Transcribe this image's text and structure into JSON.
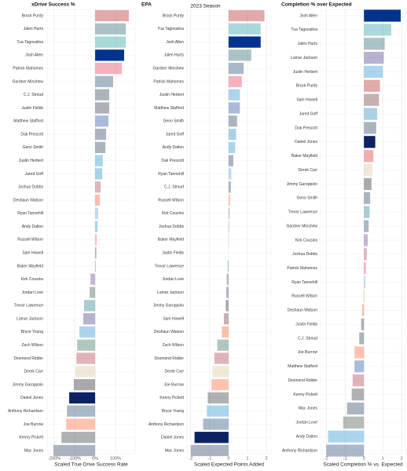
{
  "chart_data": [
    {
      "type": "bar",
      "orientation": "horizontal",
      "title": "xDrive Success %",
      "xlabel": "Scaled True Drive Success Rate",
      "categories": [
        "Brock Purdy",
        "Jalen Hurts",
        "Tua Tagovailoa",
        "Josh Allen",
        "Patrick Mahomes",
        "Gardner Minshew",
        "C.J. Stroud",
        "Justin Fields",
        "Matthew Stafford",
        "Dak Prescott",
        "Geno Smith",
        "Justin Herbert",
        "Jared Goff",
        "Joshua Dobbs",
        "Deshaun Watson",
        "Ryan Tannehill",
        "Andy Dalton",
        "Russell Wilson",
        "Sam Howell",
        "Baker Mayfield",
        "Kirk Cousins",
        "Jordan Love",
        "Trevor Lawrence",
        "Lamar Jackson",
        "Bryce Young",
        "Zach Wilson",
        "Desmond Ridder",
        "Derek Carr",
        "Jimmy Garoppolo",
        "Daniel Jones",
        "Anthony Richardson",
        "Joe Burrow",
        "Kenny Pickett",
        "Mac Jones"
      ],
      "values": [
        165,
        150,
        150,
        142,
        131,
        88,
        69,
        69,
        65,
        54,
        50,
        38,
        35,
        27,
        23,
        15,
        12,
        8,
        6,
        3,
        -23,
        -27,
        -54,
        -58,
        -77,
        -88,
        -92,
        -96,
        -104,
        -127,
        -138,
        -142,
        -165,
        -204
      ],
      "colors": [
        "#aa000055",
        "#004c5455",
        "#008e9755",
        "#00338d",
        "#e3183755",
        "#002c5f55",
        "#03202f55",
        "#0b162a55",
        "#00359455",
        "#041e4255",
        "#00224455",
        "#0080c655",
        "#0076b655",
        "#97233f55",
        "#ff3c0055",
        "#4b92db55",
        "#0085ca55",
        "#fb4f1455",
        "#5a141455",
        "#d50a0a55",
        "#4f268355",
        "#20373155",
        "#00677855",
        "#24177355",
        "#0085ca55",
        "#12574055",
        "#a7193055",
        "#d3bc8d55",
        "#00000055",
        "#0b2265",
        "#002c5f55",
        "#fb4f1455",
        "#10182055",
        "#00224455"
      ],
      "xlim": [
        -235,
        196
      ],
      "xticks": [
        {
          "value": -200,
          "label": "-200%"
        },
        {
          "value": -100,
          "label": "-100%"
        },
        {
          "value": 0,
          "label": "0%"
        },
        {
          "value": 100,
          "label": "100%"
        }
      ],
      "grid": true
    },
    {
      "type": "bar",
      "orientation": "horizontal",
      "title": "EPA",
      "subtitle": "2023 Season",
      "xlabel": "Scaled Expected Points Added",
      "categories": [
        "Brock Purdy",
        "Tua Tagovailoa",
        "Josh Allen",
        "Jalen Hurts",
        "Gardner Minshew",
        "Patrick Mahomes",
        "Justin Herbert",
        "Matthew Stafford",
        "Geno Smith",
        "Jared Goff",
        "Andy Dalton",
        "Dak Prescott",
        "Ryan Tannehill",
        "C.J. Stroud",
        "Russell Wilson",
        "Kirk Cousins",
        "Joshua Dobbs",
        "Baker Mayfield",
        "Justin Fields",
        "Trevor Lawrence",
        "Jordan Love",
        "Lamar Jackson",
        "Jimmy Garoppolo",
        "Sam Howell",
        "Deshaun Watson",
        "Zach Wilson",
        "Desmond Ridder",
        "Derek Carr",
        "Joe Burrow",
        "Kenny Pickett",
        "Bryce Young",
        "Anthony Richardson",
        "Daniel Jones",
        "Mac Jones"
      ],
      "values": [
        1.9,
        1.7,
        1.7,
        1.2,
        0.8,
        0.7,
        0.6,
        0.6,
        0.45,
        0.4,
        0.35,
        0.25,
        0.15,
        0.12,
        0.08,
        0.05,
        0.03,
        0.01,
        0,
        -0.05,
        -0.1,
        -0.12,
        -0.15,
        -0.25,
        -0.35,
        -0.6,
        -0.75,
        -0.85,
        -0.9,
        -1.1,
        -1.15,
        -1.35,
        -1.8,
        -2.0
      ],
      "colors": [
        "#aa000055",
        "#008e9755",
        "#00338d",
        "#004c5455",
        "#002c5f55",
        "#e3183755",
        "#0080c655",
        "#00359455",
        "#00224455",
        "#0076b655",
        "#0085ca55",
        "#041e4255",
        "#4b92db55",
        "#03202f55",
        "#fb4f1455",
        "#4f268355",
        "#97233f55",
        "#d50a0a55",
        "#0b162a55",
        "#00677855",
        "#20373155",
        "#24177355",
        "#00000055",
        "#5a141455",
        "#ff3c0055",
        "#12574055",
        "#a7193055",
        "#d3bc8d55",
        "#fb4f1455",
        "#10182055",
        "#0085ca55",
        "#002c5f55",
        "#0b2265",
        "#00224455"
      ],
      "xlim": [
        -2.2,
        2.25
      ],
      "xticks": [
        -2,
        -1,
        0,
        1,
        2
      ],
      "grid": true
    },
    {
      "type": "bar",
      "orientation": "horizontal",
      "title": "Completion % over Expected",
      "xlabel": "Scaled Completion % vs. Expected",
      "categories": [
        "Josh Allen",
        "Tua Tagovailoa",
        "Jalen Hurts",
        "Lamar Jackson",
        "Justin Herbert",
        "Brock Purdy",
        "Sam Howell",
        "Jared Goff",
        "Dak Prescott",
        "Daniel Jones",
        "Baker Mayfield",
        "Derek Carr",
        "Jimmy Garoppolo",
        "Geno Smith",
        "Trevor Lawrence",
        "Gardner Minshew",
        "Kirk Cousins",
        "Joshua Dobbs",
        "Patrick Mahomes",
        "Ryan Tannehill",
        "Russell Wilson",
        "Deshaun Watson",
        "Justin Fields",
        "C.J. Stroud",
        "Joe Burrow",
        "Matthew Stafford",
        "Desmond Ridder",
        "Kenny Pickett",
        "Mac Jones",
        "Jordan Love",
        "Andy Dalton",
        "Anthony Richardson"
      ],
      "values": [
        1.95,
        1.45,
        1.1,
        1.05,
        1.0,
        0.85,
        0.8,
        0.7,
        0.65,
        0.6,
        0.5,
        0.45,
        0.4,
        0.33,
        0.3,
        0.25,
        0.2,
        0.15,
        0.1,
        0.08,
        0.03,
        -0.1,
        -0.15,
        -0.25,
        -0.5,
        -0.5,
        -0.6,
        -0.65,
        -0.9,
        -1.1,
        -1.9,
        -2.0
      ],
      "colors": [
        "#00338d",
        "#008e9755",
        "#004c5455",
        "#24177355",
        "#0080c655",
        "#aa000055",
        "#5a141455",
        "#0076b655",
        "#041e4255",
        "#0b2265",
        "#d50a0a55",
        "#d3bc8d55",
        "#00000055",
        "#00224455",
        "#00677855",
        "#002c5f55",
        "#4f268355",
        "#97233f55",
        "#e3183755",
        "#4b92db55",
        "#fb4f1455",
        "#ff3c0055",
        "#0b162a55",
        "#03202f55",
        "#fb4f1455",
        "#00359455",
        "#a7193055",
        "#10182055",
        "#00224455",
        "#20373155",
        "#0085ca55",
        "#002c5f55"
      ],
      "xlim": [
        -2.3,
        2.2
      ],
      "xticks": [
        -2,
        -1,
        0,
        1,
        2
      ],
      "grid": true
    }
  ]
}
